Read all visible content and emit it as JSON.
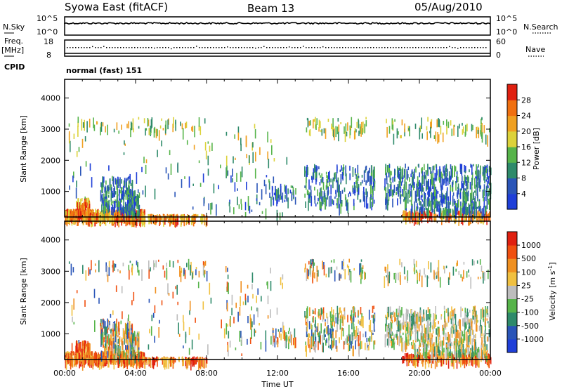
{
  "header": {
    "title": "Syowa East (fitACF)",
    "beam": "Beam 13",
    "date": "05/Aug/2010"
  },
  "noise_panel": {
    "left_label": "N.Sky",
    "right_label": "N.Search",
    "left_ticks": [
      "10^5",
      "10^0"
    ],
    "right_ticks": [
      "10^5",
      "10^0"
    ]
  },
  "freq_panel": {
    "left_label_1": "Freq.",
    "left_label_2": "[MHz]",
    "right_label": "Nave",
    "left_ticks": [
      "18",
      "8"
    ],
    "right_ticks": [
      "60",
      "0"
    ]
  },
  "cpid": {
    "label": "CPID",
    "program": "normal (fast) 151"
  },
  "chart_data": [
    {
      "type": "heatmap",
      "panel": "power",
      "ylabel": "Slant Range [km]",
      "yticks": [
        1000,
        2000,
        3000,
        4000
      ],
      "ylim": [
        180,
        4600
      ],
      "xticks": [
        "00:00",
        "04:00",
        "08:00",
        "12:00",
        "16:00",
        "20:00",
        "00:00"
      ],
      "xlim_hours": [
        0,
        24
      ],
      "colorbar": {
        "label": "Power [dB]",
        "ticks": [
          "4",
          "8",
          "12",
          "16",
          "20",
          "24",
          "28"
        ],
        "colors": [
          "#1f3fd8",
          "#2a55b8",
          "#2e8a6a",
          "#56b44a",
          "#dcd23a",
          "#f0a020",
          "#f07010",
          "#e02010"
        ]
      }
    },
    {
      "type": "heatmap",
      "panel": "velocity",
      "ylabel": "Slant Range [km]",
      "yticks": [
        1000,
        2000,
        3000,
        4000
      ],
      "ylim": [
        180,
        4600
      ],
      "xticks": [
        "00:00",
        "04:00",
        "08:00",
        "12:00",
        "16:00",
        "20:00",
        "00:00"
      ],
      "xlim_hours": [
        0,
        24
      ],
      "xlabel": "Time UT",
      "colorbar": {
        "label": "Velocity [m s",
        "label_sup": "-1",
        "label_end": "]",
        "ticks": [
          "1000",
          "500",
          "100",
          "25",
          "-25",
          "-100",
          "-500",
          "-1000"
        ],
        "colors": [
          "#1f3fd8",
          "#2a55b8",
          "#2e8a6a",
          "#56b44a",
          "#bdbdbd",
          "#f0c040",
          "#f09020",
          "#f05010",
          "#e02010"
        ]
      }
    }
  ]
}
